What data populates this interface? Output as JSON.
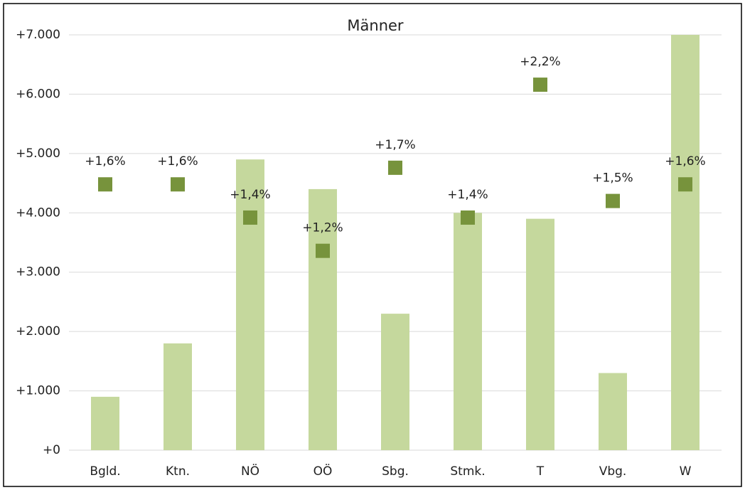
{
  "chart_data": {
    "type": "bar",
    "title": "Männer",
    "categories": [
      "Bgld.",
      "Ktn.",
      "NÖ",
      "OÖ",
      "Sbg.",
      "Stmk.",
      "T",
      "Vbg.",
      "W"
    ],
    "series": [
      {
        "type": "bar",
        "color": "#c5d89d",
        "values": [
          900,
          1800,
          4900,
          4400,
          2300,
          4000,
          3900,
          1300,
          7000
        ]
      },
      {
        "type": "scatter",
        "axis": "y2",
        "color": "#77933c",
        "values": [
          1.6,
          1.6,
          1.4,
          1.2,
          1.7,
          1.4,
          2.2,
          1.5,
          1.6
        ],
        "value_labels": [
          "+1,6%",
          "+1,6%",
          "+1,4%",
          "+1,2%",
          "+1,7%",
          "+1,4%",
          "+2,2%",
          "+1,5%",
          "+1,6%"
        ]
      }
    ],
    "ylim": [
      0,
      7000
    ],
    "yticks": [
      {
        "value": 0,
        "label": "+0"
      },
      {
        "value": 1000,
        "label": "+1.000"
      },
      {
        "value": 2000,
        "label": "+2.000"
      },
      {
        "value": 3000,
        "label": "+3.000"
      },
      {
        "value": 4000,
        "label": "+4.000"
      },
      {
        "value": 5000,
        "label": "+5.000"
      },
      {
        "value": 6000,
        "label": "+6.000"
      },
      {
        "value": 7000,
        "label": "+7.000"
      }
    ],
    "y2lim": [
      0,
      2.5
    ],
    "grid": true
  }
}
